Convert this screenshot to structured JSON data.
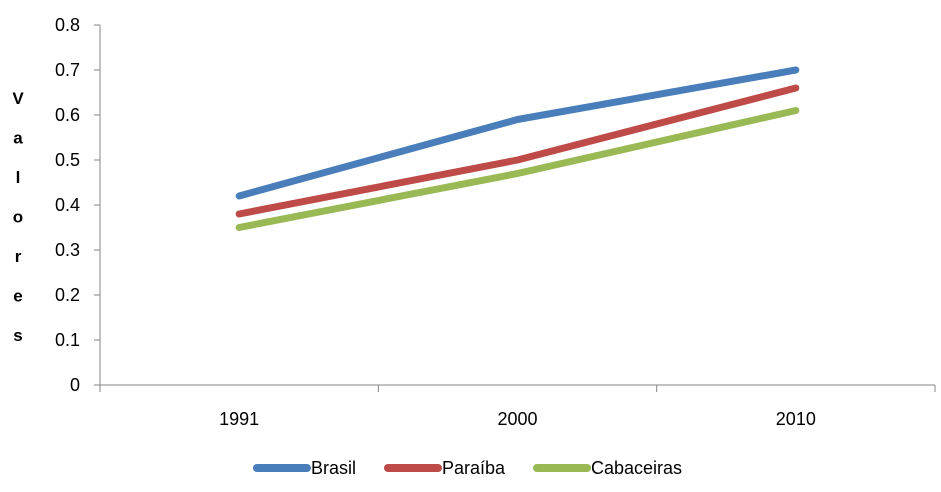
{
  "chart_data": {
    "type": "line",
    "title": "",
    "xlabel": "",
    "ylabel": "Valores",
    "categories": [
      "1991",
      "2000",
      "2010"
    ],
    "ylim": [
      0,
      0.8
    ],
    "yticks": [
      0,
      0.1,
      0.2,
      0.3,
      0.4,
      0.5,
      0.6,
      0.7,
      0.8
    ],
    "grid": false,
    "legend_position": "bottom",
    "series": [
      {
        "name": "Brasil",
        "values": [
          0.42,
          0.59,
          0.7
        ],
        "color": "#4a7ebb"
      },
      {
        "name": "Paraíba",
        "values": [
          0.38,
          0.5,
          0.66
        ],
        "color": "#be4b48"
      },
      {
        "name": "Cabaceiras",
        "values": [
          0.35,
          0.47,
          0.61
        ],
        "color": "#98b954"
      }
    ]
  }
}
